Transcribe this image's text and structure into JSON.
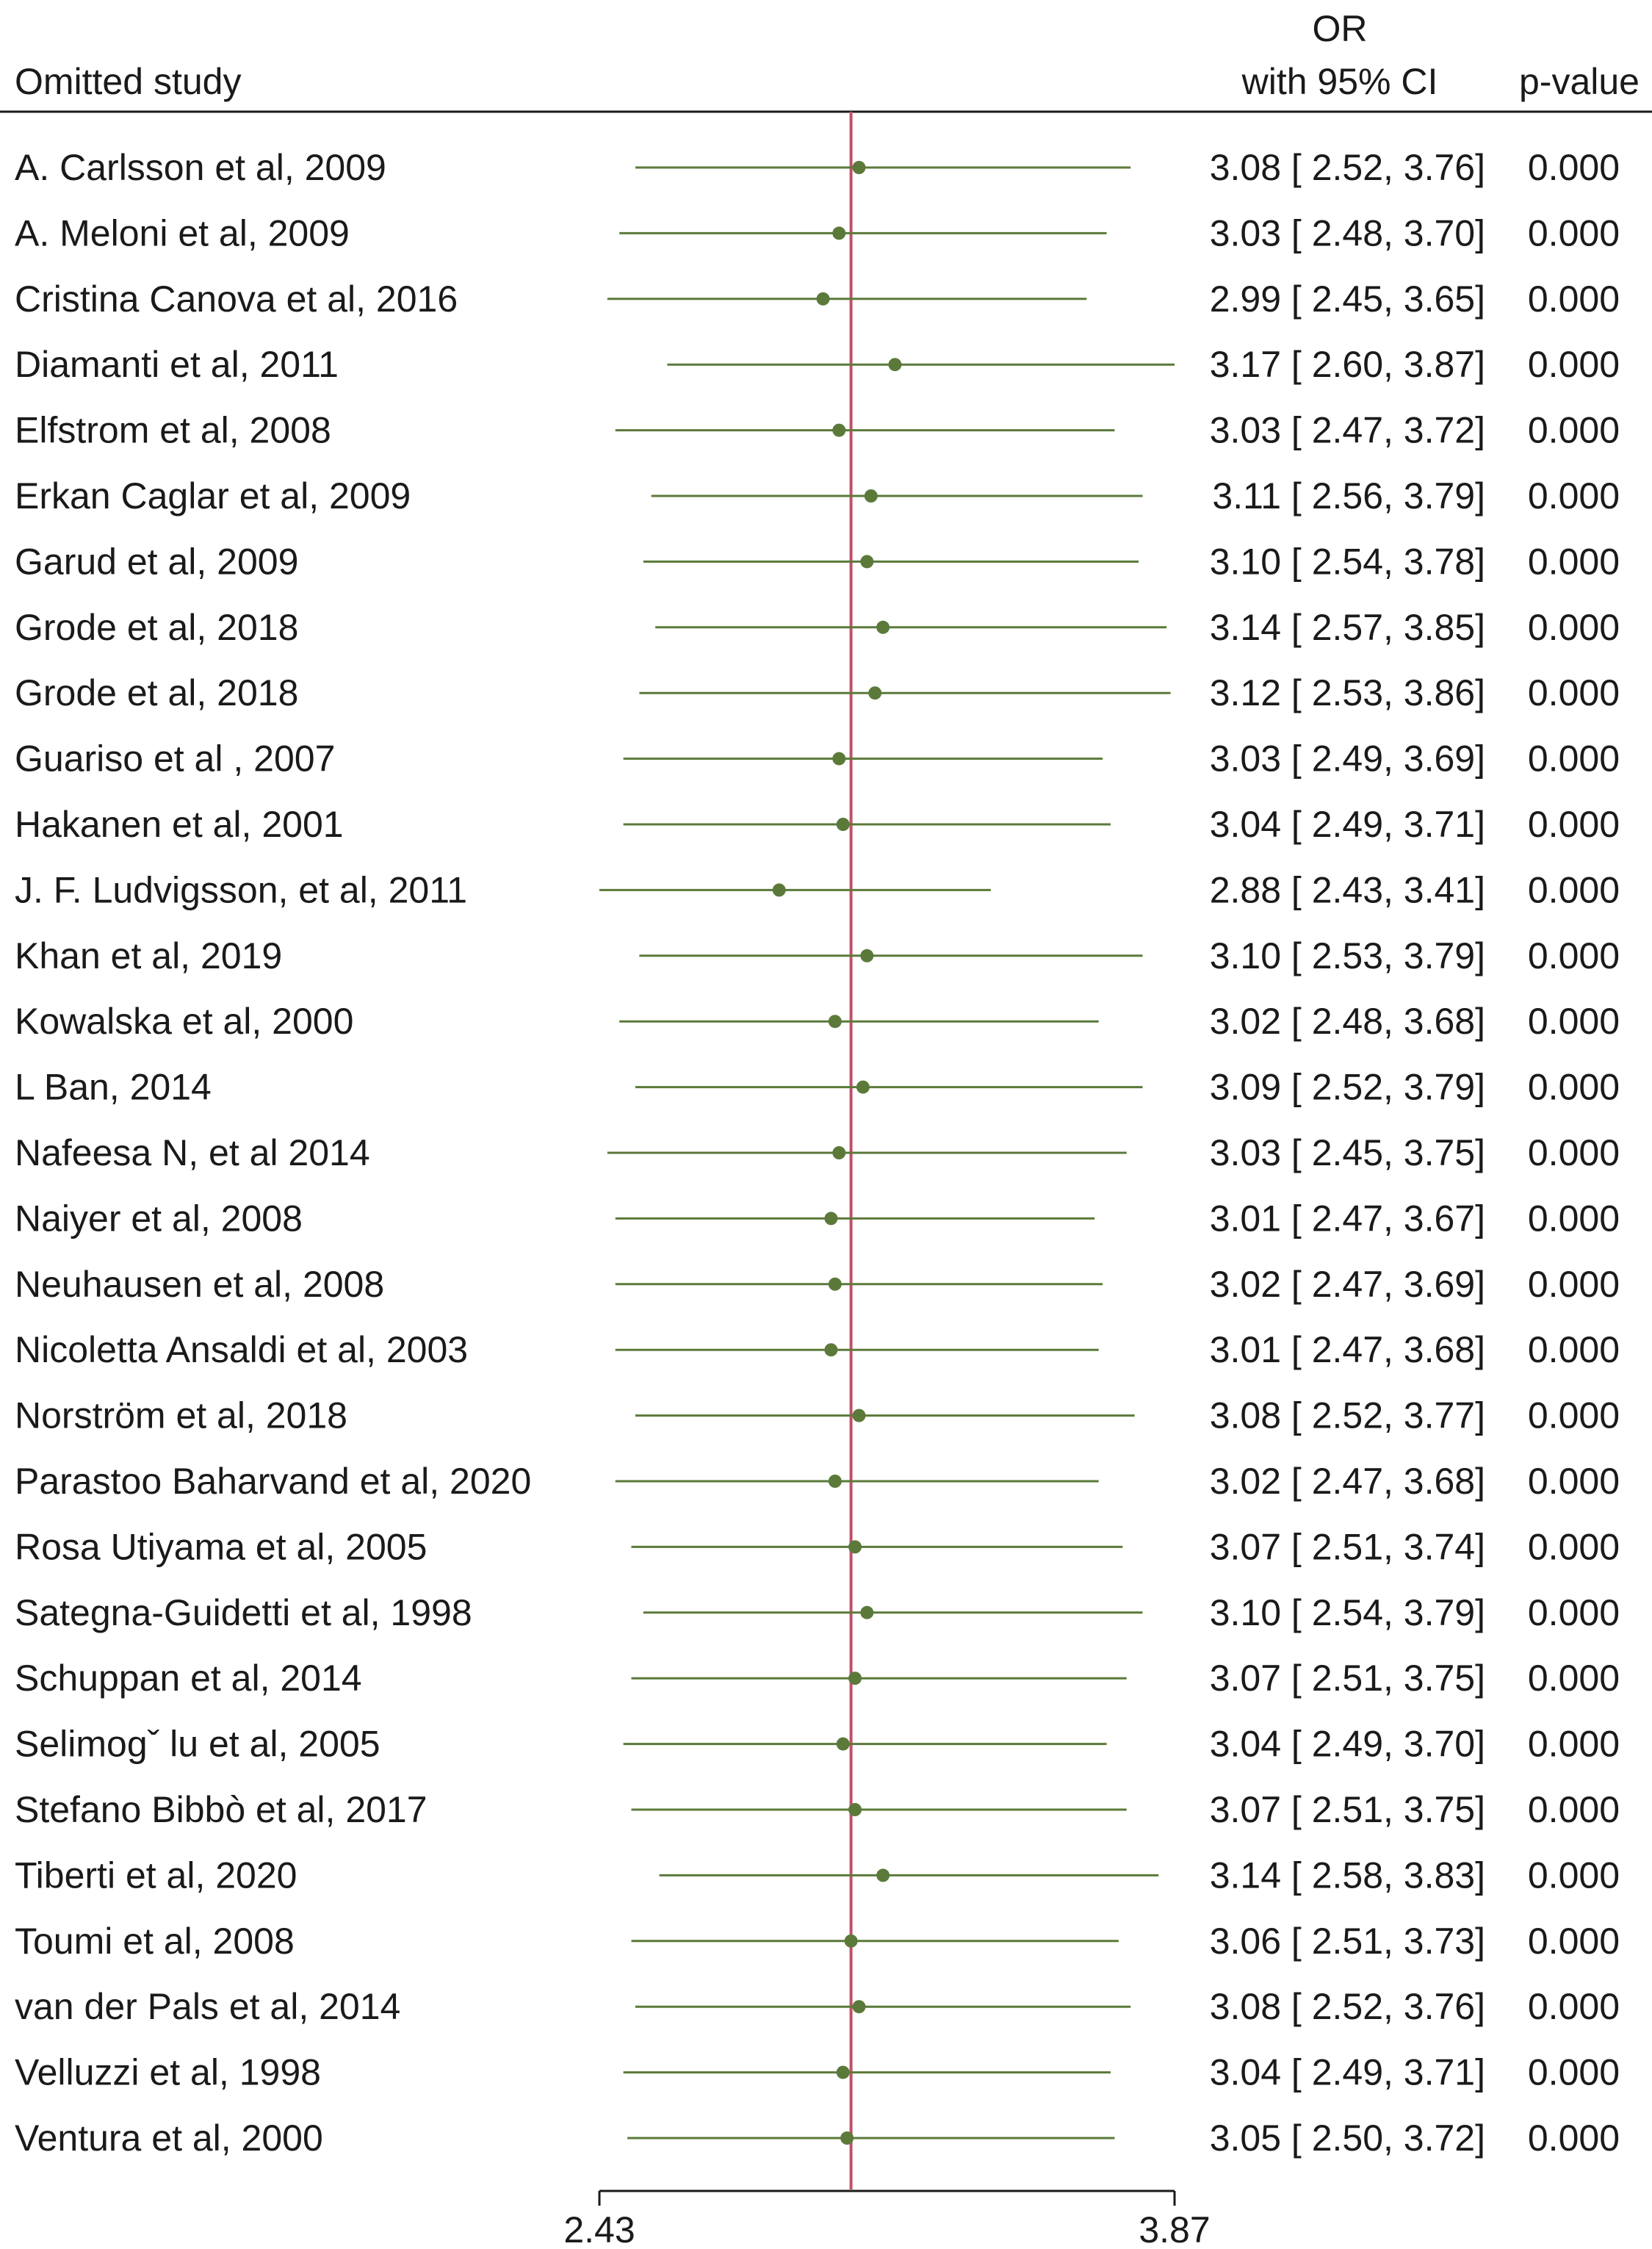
{
  "chart_data": {
    "type": "forest",
    "header": {
      "study_col": "Omitted study",
      "or_line1": "OR",
      "or_line2": "with 95% CI",
      "p_col": "p-value"
    },
    "x_ticks": [
      "2.43",
      "3.87"
    ],
    "x_range": [
      2.43,
      3.87
    ],
    "reference_line": 3.06,
    "colors": {
      "marker": "#5b7a3a",
      "reference": "#c0506a",
      "text": "#1a1a1a",
      "axis": "#1a1a1a"
    },
    "rows": [
      {
        "study": "A. Carlsson et al, 2009",
        "or": 3.08,
        "lo": 2.52,
        "hi": 3.76,
        "ci": "3.08 [ 2.52,  3.76]",
        "p": "0.000"
      },
      {
        "study": "A. Meloni et al, 2009",
        "or": 3.03,
        "lo": 2.48,
        "hi": 3.7,
        "ci": "3.03 [ 2.48,  3.70]",
        "p": "0.000"
      },
      {
        "study": "Cristina Canova et al, 2016",
        "or": 2.99,
        "lo": 2.45,
        "hi": 3.65,
        "ci": "2.99 [ 2.45,  3.65]",
        "p": "0.000"
      },
      {
        "study": "Diamanti et al, 2011",
        "or": 3.17,
        "lo": 2.6,
        "hi": 3.87,
        "ci": "3.17 [ 2.60,  3.87]",
        "p": "0.000"
      },
      {
        "study": "Elfstrom et al, 2008",
        "or": 3.03,
        "lo": 2.47,
        "hi": 3.72,
        "ci": "3.03 [ 2.47,  3.72]",
        "p": "0.000"
      },
      {
        "study": "Erkan Caglar et al, 2009",
        "or": 3.11,
        "lo": 2.56,
        "hi": 3.79,
        "ci": "3.11 [ 2.56,  3.79]",
        "p": "0.000"
      },
      {
        "study": "Garud et al, 2009",
        "or": 3.1,
        "lo": 2.54,
        "hi": 3.78,
        "ci": "3.10 [ 2.54,  3.78]",
        "p": "0.000"
      },
      {
        "study": "Grode et al, 2018",
        "or": 3.14,
        "lo": 2.57,
        "hi": 3.85,
        "ci": "3.14 [ 2.57,  3.85]",
        "p": "0.000"
      },
      {
        "study": "Grode et al, 2018",
        "or": 3.12,
        "lo": 2.53,
        "hi": 3.86,
        "ci": "3.12 [ 2.53,  3.86]",
        "p": "0.000"
      },
      {
        "study": "Guariso et al , 2007",
        "or": 3.03,
        "lo": 2.49,
        "hi": 3.69,
        "ci": "3.03 [ 2.49,  3.69]",
        "p": "0.000"
      },
      {
        "study": "Hakanen et al, 2001",
        "or": 3.04,
        "lo": 2.49,
        "hi": 3.71,
        "ci": "3.04 [ 2.49,  3.71]",
        "p": "0.000"
      },
      {
        "study": "J. F. Ludvigsson, et al, 2011",
        "or": 2.88,
        "lo": 2.43,
        "hi": 3.41,
        "ci": "2.88 [ 2.43,  3.41]",
        "p": "0.000"
      },
      {
        "study": "Khan et al, 2019",
        "or": 3.1,
        "lo": 2.53,
        "hi": 3.79,
        "ci": "3.10 [ 2.53,  3.79]",
        "p": "0.000"
      },
      {
        "study": "Kowalska et al, 2000",
        "or": 3.02,
        "lo": 2.48,
        "hi": 3.68,
        "ci": "3.02 [ 2.48,  3.68]",
        "p": "0.000"
      },
      {
        "study": "L Ban, 2014",
        "or": 3.09,
        "lo": 2.52,
        "hi": 3.79,
        "ci": "3.09 [ 2.52,  3.79]",
        "p": "0.000"
      },
      {
        "study": "Nafeesa N, et al 2014",
        "or": 3.03,
        "lo": 2.45,
        "hi": 3.75,
        "ci": "3.03 [ 2.45,  3.75]",
        "p": "0.000"
      },
      {
        "study": "Naiyer et al, 2008",
        "or": 3.01,
        "lo": 2.47,
        "hi": 3.67,
        "ci": "3.01 [ 2.47,  3.67]",
        "p": "0.000"
      },
      {
        "study": "Neuhausen et al, 2008",
        "or": 3.02,
        "lo": 2.47,
        "hi": 3.69,
        "ci": "3.02 [ 2.47,  3.69]",
        "p": "0.000"
      },
      {
        "study": "Nicoletta Ansaldi et al, 2003",
        "or": 3.01,
        "lo": 2.47,
        "hi": 3.68,
        "ci": "3.01 [ 2.47,  3.68]",
        "p": "0.000"
      },
      {
        "study": "Norström et al, 2018",
        "or": 3.08,
        "lo": 2.52,
        "hi": 3.77,
        "ci": "3.08 [ 2.52,  3.77]",
        "p": "0.000"
      },
      {
        "study": "Parastoo Baharvand et al, 2020",
        "or": 3.02,
        "lo": 2.47,
        "hi": 3.68,
        "ci": "3.02 [ 2.47,  3.68]",
        "p": "0.000"
      },
      {
        "study": "Rosa Utiyama et al, 2005",
        "or": 3.07,
        "lo": 2.51,
        "hi": 3.74,
        "ci": "3.07 [ 2.51,  3.74]",
        "p": "0.000"
      },
      {
        "study": "Sategna-Guidetti et al, 1998",
        "or": 3.1,
        "lo": 2.54,
        "hi": 3.79,
        "ci": "3.10 [ 2.54,  3.79]",
        "p": "0.000"
      },
      {
        "study": "Schuppan et al, 2014",
        "or": 3.07,
        "lo": 2.51,
        "hi": 3.75,
        "ci": "3.07 [ 2.51,  3.75]",
        "p": "0.000"
      },
      {
        "study": "Selimogˇ lu et al, 2005",
        "or": 3.04,
        "lo": 2.49,
        "hi": 3.7,
        "ci": "3.04 [ 2.49,  3.70]",
        "p": "0.000"
      },
      {
        "study": "Stefano Bibbò et al, 2017",
        "or": 3.07,
        "lo": 2.51,
        "hi": 3.75,
        "ci": "3.07 [ 2.51,  3.75]",
        "p": "0.000"
      },
      {
        "study": "Tiberti et al, 2020",
        "or": 3.14,
        "lo": 2.58,
        "hi": 3.83,
        "ci": "3.14 [ 2.58,  3.83]",
        "p": "0.000"
      },
      {
        "study": "Toumi et al, 2008",
        "or": 3.06,
        "lo": 2.51,
        "hi": 3.73,
        "ci": "3.06 [ 2.51,  3.73]",
        "p": "0.000"
      },
      {
        "study": "van der Pals et al, 2014",
        "or": 3.08,
        "lo": 2.52,
        "hi": 3.76,
        "ci": "3.08 [ 2.52,  3.76]",
        "p": "0.000"
      },
      {
        "study": "Velluzzi et al, 1998",
        "or": 3.04,
        "lo": 2.49,
        "hi": 3.71,
        "ci": "3.04 [ 2.49,  3.71]",
        "p": "0.000"
      },
      {
        "study": "Ventura et al, 2000",
        "or": 3.05,
        "lo": 2.5,
        "hi": 3.72,
        "ci": "3.05 [ 2.50,  3.72]",
        "p": "0.000"
      }
    ]
  }
}
